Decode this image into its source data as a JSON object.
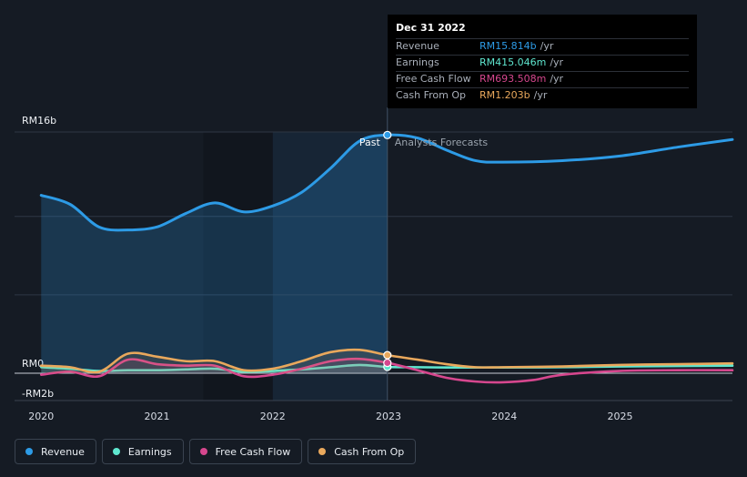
{
  "colors": {
    "revenue": "#2d9be6",
    "earnings": "#5fe6cf",
    "free_cash_flow": "#d6478e",
    "cash_from_op": "#e9a85c"
  },
  "tooltip": {
    "date": "Dec 31 2022",
    "rows": [
      {
        "name": "Revenue",
        "value": "RM15.814b",
        "unit": "/yr"
      },
      {
        "name": "Earnings",
        "value": "RM415.046m",
        "unit": "/yr"
      },
      {
        "name": "Free Cash Flow",
        "value": "RM693.508m",
        "unit": "/yr"
      },
      {
        "name": "Cash From Op",
        "value": "RM1.203b",
        "unit": "/yr"
      }
    ]
  },
  "legend": [
    {
      "label": "Revenue"
    },
    {
      "label": "Earnings"
    },
    {
      "label": "Free Cash Flow"
    },
    {
      "label": "Cash From Op"
    }
  ],
  "chart_data": {
    "type": "line",
    "y_labels": [
      "RM16b",
      "RM0",
      "-RM2b"
    ],
    "x_ticks": [
      "2020",
      "2021",
      "2022",
      "2023",
      "2024",
      "2025"
    ],
    "past_label": "Past",
    "forecast_label": "Analysts Forecasts",
    "divider_x": 2022.99,
    "xlim": [
      2019.77,
      2025.97
    ],
    "ylim": [
      -2,
      16
    ],
    "series": [
      {
        "name": "Revenue",
        "key": "revenue",
        "area": true,
        "points": [
          [
            2020.0,
            11.8
          ],
          [
            2020.25,
            11.2
          ],
          [
            2020.5,
            9.7
          ],
          [
            2020.75,
            9.5
          ],
          [
            2021.0,
            9.7
          ],
          [
            2021.25,
            10.6
          ],
          [
            2021.5,
            11.3
          ],
          [
            2021.75,
            10.7
          ],
          [
            2022.0,
            11.1
          ],
          [
            2022.25,
            12.0
          ],
          [
            2022.5,
            13.6
          ],
          [
            2022.75,
            15.4
          ],
          [
            2022.99,
            15.8
          ],
          [
            2023.25,
            15.6
          ],
          [
            2023.5,
            14.8
          ],
          [
            2023.75,
            14.1
          ],
          [
            2023.99,
            14.0
          ],
          [
            2024.5,
            14.1
          ],
          [
            2024.99,
            14.4
          ],
          [
            2025.5,
            15.0
          ],
          [
            2025.97,
            15.5
          ]
        ]
      },
      {
        "name": "Earnings",
        "key": "earnings",
        "points": [
          [
            2020.0,
            0.4
          ],
          [
            2020.25,
            0.3
          ],
          [
            2020.5,
            0.15
          ],
          [
            2020.75,
            0.2
          ],
          [
            2021.0,
            0.2
          ],
          [
            2021.25,
            0.25
          ],
          [
            2021.5,
            0.3
          ],
          [
            2021.75,
            0.1
          ],
          [
            2022.0,
            0.15
          ],
          [
            2022.25,
            0.25
          ],
          [
            2022.5,
            0.4
          ],
          [
            2022.75,
            0.55
          ],
          [
            2022.99,
            0.42
          ],
          [
            2023.25,
            0.4
          ],
          [
            2023.5,
            0.38
          ],
          [
            2023.75,
            0.38
          ],
          [
            2023.99,
            0.38
          ],
          [
            2024.5,
            0.4
          ],
          [
            2024.99,
            0.45
          ],
          [
            2025.5,
            0.48
          ],
          [
            2025.97,
            0.5
          ]
        ]
      },
      {
        "name": "Free Cash Flow",
        "key": "free_cash_flow",
        "points": [
          [
            2020.0,
            -0.1
          ],
          [
            2020.25,
            0.1
          ],
          [
            2020.5,
            -0.2
          ],
          [
            2020.75,
            0.9
          ],
          [
            2021.0,
            0.6
          ],
          [
            2021.25,
            0.5
          ],
          [
            2021.5,
            0.5
          ],
          [
            2021.75,
            -0.2
          ],
          [
            2022.0,
            -0.1
          ],
          [
            2022.25,
            0.3
          ],
          [
            2022.5,
            0.8
          ],
          [
            2022.75,
            0.95
          ],
          [
            2022.99,
            0.69
          ],
          [
            2023.25,
            0.2
          ],
          [
            2023.5,
            -0.3
          ],
          [
            2023.75,
            -0.55
          ],
          [
            2023.99,
            -0.6
          ],
          [
            2024.25,
            -0.45
          ],
          [
            2024.5,
            -0.1
          ],
          [
            2024.99,
            0.15
          ],
          [
            2025.5,
            0.2
          ],
          [
            2025.97,
            0.2
          ]
        ]
      },
      {
        "name": "Cash From Op",
        "key": "cash_from_op",
        "points": [
          [
            2020.0,
            0.5
          ],
          [
            2020.25,
            0.4
          ],
          [
            2020.5,
            0.1
          ],
          [
            2020.75,
            1.3
          ],
          [
            2021.0,
            1.1
          ],
          [
            2021.25,
            0.8
          ],
          [
            2021.5,
            0.8
          ],
          [
            2021.75,
            0.2
          ],
          [
            2022.0,
            0.3
          ],
          [
            2022.25,
            0.8
          ],
          [
            2022.5,
            1.4
          ],
          [
            2022.75,
            1.55
          ],
          [
            2022.99,
            1.2
          ],
          [
            2023.25,
            0.9
          ],
          [
            2023.5,
            0.6
          ],
          [
            2023.75,
            0.4
          ],
          [
            2023.99,
            0.4
          ],
          [
            2024.5,
            0.45
          ],
          [
            2024.99,
            0.55
          ],
          [
            2025.5,
            0.6
          ],
          [
            2025.97,
            0.65
          ]
        ]
      }
    ]
  }
}
